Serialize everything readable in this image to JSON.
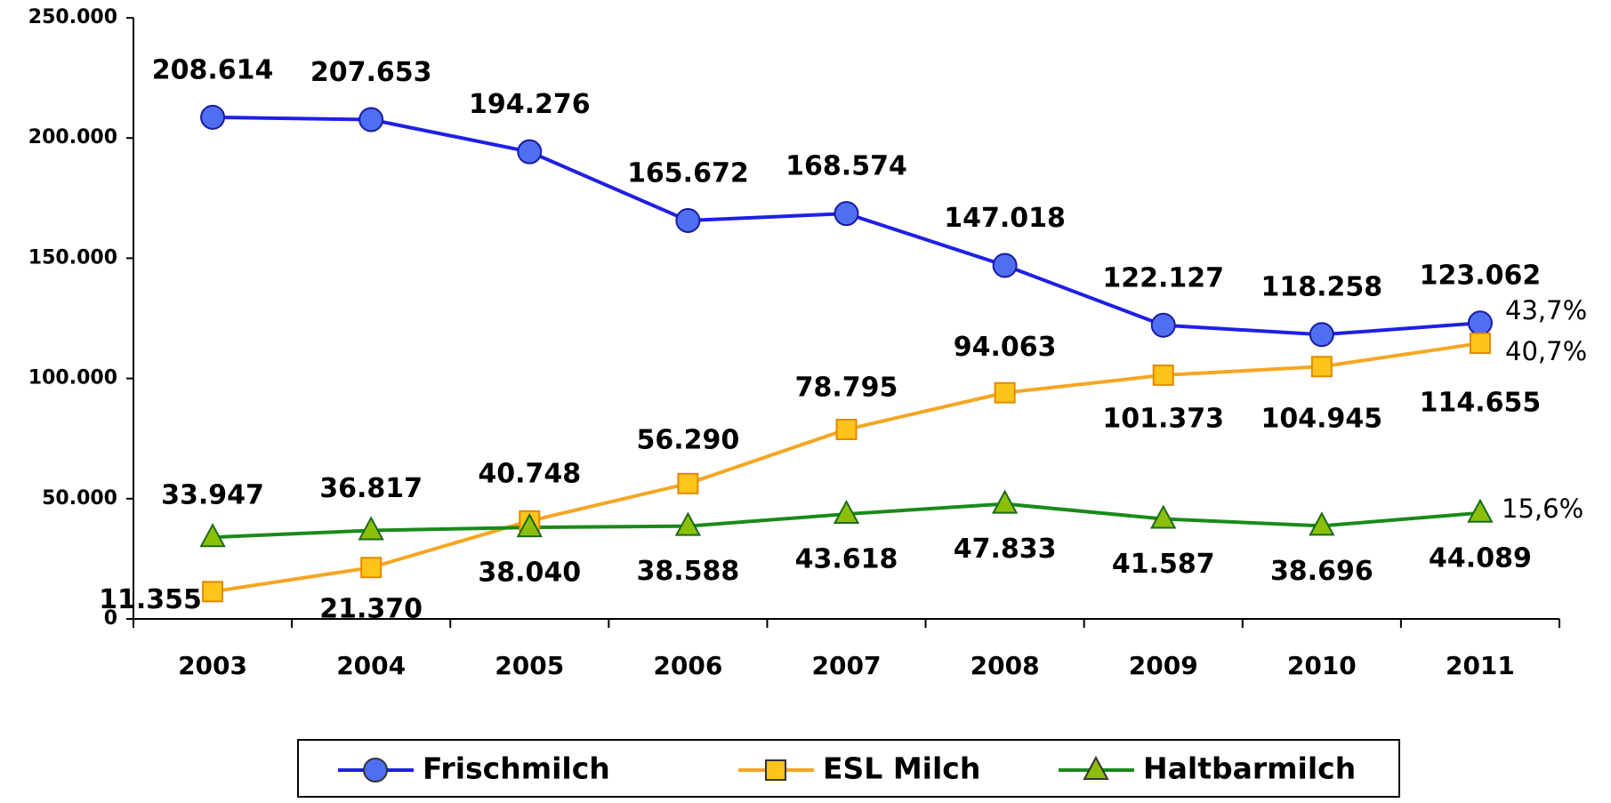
{
  "chart_data": {
    "type": "line",
    "categories": [
      "2003",
      "2004",
      "2005",
      "2006",
      "2007",
      "2008",
      "2009",
      "2010",
      "2011"
    ],
    "series": [
      {
        "name": "Frischmilch",
        "color": "#1f1fe6",
        "marker": "circle",
        "marker_color": "#4f6ff2",
        "values": [
          208614,
          207653,
          194276,
          165672,
          168574,
          147018,
          122127,
          118258,
          123062
        ],
        "value_labels": [
          "208.614",
          "207.653",
          "194.276",
          "165.672",
          "168.574",
          "147.018",
          "122.127",
          "118.258",
          "123.062"
        ]
      },
      {
        "name": "ESL Milch",
        "color": "#f5a623",
        "marker": "square",
        "marker_color": "#ffc41a",
        "values": [
          11355,
          21370,
          40748,
          56290,
          78795,
          94063,
          101373,
          104945,
          114655
        ],
        "value_labels": [
          "11.355",
          "21.370",
          "40.748",
          "56.290",
          "78.795",
          "94.063",
          "101.373",
          "104.945",
          "114.655"
        ]
      },
      {
        "name": "Haltbarmilch",
        "color": "#1a8a1a",
        "marker": "triangle",
        "marker_color": "#8cbf0a",
        "values": [
          33947,
          36817,
          38040,
          38588,
          43618,
          47833,
          41587,
          38696,
          44089
        ],
        "value_labels": [
          "33.947",
          "36.817",
          "38.040",
          "38.588",
          "43.618",
          "47.833",
          "41.587",
          "38.696",
          "44.089"
        ]
      }
    ],
    "annotations": [
      "43,7%",
      "40,7%",
      "15,6%"
    ],
    "ylim": [
      0,
      250000
    ],
    "yticks": [
      0,
      {
        "value": 50000,
        "label": "50.000"
      },
      {
        "value": 100000,
        "label": "100.000"
      },
      {
        "value": 150000,
        "label": "150.000"
      },
      {
        "value": 200000,
        "label": "200.000"
      },
      {
        "value": 250000,
        "label": "250.000"
      }
    ],
    "legend": "bottom"
  }
}
